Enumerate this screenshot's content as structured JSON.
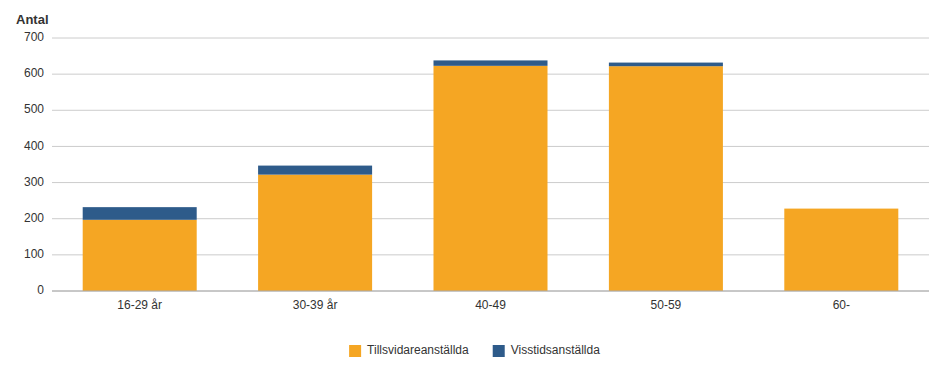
{
  "chart_data": {
    "type": "bar",
    "stacked": true,
    "ylabel": "Antal",
    "categories": [
      "16-29 år",
      "30-39 år",
      "40-49",
      "50-59",
      "60-"
    ],
    "series": [
      {
        "name": "Tillsvidareanställda",
        "color": "#F5A623",
        "values": [
          197,
          322,
          623,
          622,
          228
        ]
      },
      {
        "name": "Visstidsanställda",
        "color": "#2E5B8A",
        "values": [
          35,
          25,
          15,
          10,
          0
        ]
      }
    ],
    "ylim": [
      0,
      700
    ],
    "yticks": [
      0,
      100,
      200,
      300,
      400,
      500,
      600,
      700
    ],
    "grid": true,
    "legend": "bottom"
  }
}
